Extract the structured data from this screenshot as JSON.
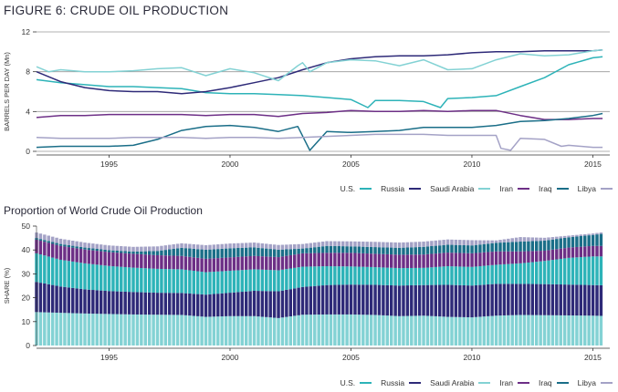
{
  "figure": {
    "title": "FIGURE 6: CRUDE OIL PRODUCTION",
    "subtitle": "Proportion of World Crude Oil Production"
  },
  "legend": [
    {
      "name": "U.S.",
      "color": "#2db3b8"
    },
    {
      "name": "Russia",
      "color": "#2e2a78"
    },
    {
      "name": "Saudi Arabia",
      "color": "#83d2d4"
    },
    {
      "name": "Iran",
      "color": "#6d2f86"
    },
    {
      "name": "Iraq",
      "color": "#1a6e88"
    },
    {
      "name": "Libya",
      "color": "#a4a2c6"
    }
  ],
  "chart_data": [
    {
      "type": "line",
      "title": "FIGURE 6: CRUDE OIL PRODUCTION",
      "ylabel": "BARRELS PER DAY (Mn)",
      "xlabel": "",
      "ylim": [
        0,
        12
      ],
      "yticks": [
        0,
        4,
        8,
        12
      ],
      "xlim": [
        1992,
        2015.7
      ],
      "xticks": [
        1995,
        2000,
        2005,
        2010,
        2015
      ],
      "grid": true,
      "legend_position": "bottom-right",
      "series": [
        {
          "name": "U.S.",
          "color": "#2db3b8",
          "points": [
            [
              1992,
              7.2
            ],
            [
              1993,
              6.9
            ],
            [
              1994,
              6.7
            ],
            [
              1995,
              6.5
            ],
            [
              1996,
              6.5
            ],
            [
              1997,
              6.4
            ],
            [
              1998,
              6.3
            ],
            [
              1999,
              5.9
            ],
            [
              2000,
              5.8
            ],
            [
              2001,
              5.8
            ],
            [
              2002,
              5.7
            ],
            [
              2003,
              5.6
            ],
            [
              2004,
              5.4
            ],
            [
              2005,
              5.2
            ],
            [
              2005.7,
              4.4
            ],
            [
              2006,
              5.1
            ],
            [
              2007,
              5.1
            ],
            [
              2008,
              5.0
            ],
            [
              2008.7,
              4.4
            ],
            [
              2009,
              5.3
            ],
            [
              2010,
              5.4
            ],
            [
              2011,
              5.6
            ],
            [
              2012,
              6.5
            ],
            [
              2013,
              7.4
            ],
            [
              2014,
              8.7
            ],
            [
              2015,
              9.4
            ],
            [
              2015.4,
              9.5
            ]
          ]
        },
        {
          "name": "Russia",
          "color": "#2e2a78",
          "points": [
            [
              1992,
              8.0
            ],
            [
              1992.3,
              7.7
            ],
            [
              1993,
              7.0
            ],
            [
              1994,
              6.4
            ],
            [
              1995,
              6.1
            ],
            [
              1996,
              6.0
            ],
            [
              1997,
              6.0
            ],
            [
              1998,
              5.8
            ],
            [
              1999,
              6.0
            ],
            [
              2000,
              6.4
            ],
            [
              2001,
              6.9
            ],
            [
              2002,
              7.4
            ],
            [
              2003,
              8.2
            ],
            [
              2004,
              8.9
            ],
            [
              2005,
              9.3
            ],
            [
              2006,
              9.5
            ],
            [
              2007,
              9.6
            ],
            [
              2008,
              9.6
            ],
            [
              2009,
              9.7
            ],
            [
              2010,
              9.9
            ],
            [
              2011,
              10.0
            ],
            [
              2012,
              10.0
            ],
            [
              2013,
              10.1
            ],
            [
              2014,
              10.1
            ],
            [
              2015,
              10.1
            ],
            [
              2015.4,
              10.2
            ]
          ]
        },
        {
          "name": "Saudi Arabia",
          "color": "#83d2d4",
          "points": [
            [
              1992,
              8.5
            ],
            [
              1992.5,
              8.0
            ],
            [
              1993,
              8.2
            ],
            [
              1994,
              8.0
            ],
            [
              1995,
              8.0
            ],
            [
              1996,
              8.1
            ],
            [
              1997,
              8.3
            ],
            [
              1998,
              8.4
            ],
            [
              1999,
              7.6
            ],
            [
              2000,
              8.3
            ],
            [
              2001,
              7.9
            ],
            [
              2002,
              7.1
            ],
            [
              2002.8,
              8.6
            ],
            [
              2003,
              8.9
            ],
            [
              2003.3,
              8.0
            ],
            [
              2004,
              8.9
            ],
            [
              2005,
              9.2
            ],
            [
              2006,
              9.1
            ],
            [
              2007,
              8.6
            ],
            [
              2008,
              9.2
            ],
            [
              2009,
              8.2
            ],
            [
              2010,
              8.3
            ],
            [
              2011,
              9.2
            ],
            [
              2012,
              9.8
            ],
            [
              2013,
              9.6
            ],
            [
              2014,
              9.7
            ],
            [
              2015,
              10.1
            ],
            [
              2015.4,
              10.2
            ]
          ]
        },
        {
          "name": "Iran",
          "color": "#6d2f86",
          "points": [
            [
              1992,
              3.4
            ],
            [
              1993,
              3.6
            ],
            [
              1994,
              3.6
            ],
            [
              1995,
              3.7
            ],
            [
              1996,
              3.7
            ],
            [
              1997,
              3.7
            ],
            [
              1998,
              3.7
            ],
            [
              1999,
              3.6
            ],
            [
              2000,
              3.7
            ],
            [
              2001,
              3.7
            ],
            [
              2002,
              3.5
            ],
            [
              2003,
              3.8
            ],
            [
              2004,
              3.9
            ],
            [
              2005,
              4.1
            ],
            [
              2006,
              4.0
            ],
            [
              2007,
              4.0
            ],
            [
              2008,
              4.1
            ],
            [
              2009,
              4.0
            ],
            [
              2010,
              4.1
            ],
            [
              2011,
              4.1
            ],
            [
              2012,
              3.6
            ],
            [
              2013,
              3.2
            ],
            [
              2014,
              3.2
            ],
            [
              2015,
              3.3
            ],
            [
              2015.4,
              3.3
            ]
          ]
        },
        {
          "name": "Iraq",
          "color": "#1a6e88",
          "points": [
            [
              1992,
              0.4
            ],
            [
              1993,
              0.5
            ],
            [
              1994,
              0.5
            ],
            [
              1995,
              0.5
            ],
            [
              1996,
              0.6
            ],
            [
              1997,
              1.2
            ],
            [
              1998,
              2.1
            ],
            [
              1999,
              2.5
            ],
            [
              2000,
              2.6
            ],
            [
              2001,
              2.4
            ],
            [
              2002,
              2.0
            ],
            [
              2002.8,
              2.5
            ],
            [
              2003.3,
              0.1
            ],
            [
              2004,
              2.0
            ],
            [
              2005,
              1.9
            ],
            [
              2006,
              2.0
            ],
            [
              2007,
              2.1
            ],
            [
              2008,
              2.4
            ],
            [
              2009,
              2.4
            ],
            [
              2010,
              2.4
            ],
            [
              2011,
              2.6
            ],
            [
              2012,
              3.0
            ],
            [
              2013,
              3.1
            ],
            [
              2014,
              3.3
            ],
            [
              2015,
              3.6
            ],
            [
              2015.4,
              3.8
            ]
          ]
        },
        {
          "name": "Libya",
          "color": "#a4a2c6",
          "points": [
            [
              1992,
              1.4
            ],
            [
              1993,
              1.3
            ],
            [
              1994,
              1.3
            ],
            [
              1995,
              1.3
            ],
            [
              1996,
              1.4
            ],
            [
              1997,
              1.4
            ],
            [
              1998,
              1.4
            ],
            [
              1999,
              1.3
            ],
            [
              2000,
              1.4
            ],
            [
              2001,
              1.4
            ],
            [
              2002,
              1.3
            ],
            [
              2003,
              1.4
            ],
            [
              2004,
              1.5
            ],
            [
              2005,
              1.6
            ],
            [
              2006,
              1.7
            ],
            [
              2007,
              1.7
            ],
            [
              2008,
              1.7
            ],
            [
              2009,
              1.6
            ],
            [
              2010,
              1.6
            ],
            [
              2011,
              1.6
            ],
            [
              2011.2,
              0.3
            ],
            [
              2011.6,
              0.1
            ],
            [
              2012,
              1.3
            ],
            [
              2013,
              1.2
            ],
            [
              2013.7,
              0.5
            ],
            [
              2014,
              0.6
            ],
            [
              2015,
              0.4
            ],
            [
              2015.4,
              0.4
            ]
          ]
        }
      ]
    },
    {
      "type": "bar",
      "stacked": true,
      "title": "Proportion of World Crude Oil Production",
      "ylabel": "SHARE (%)",
      "xlabel": "",
      "ylim": [
        0,
        50
      ],
      "yticks": [
        0,
        10,
        20,
        30,
        40,
        50
      ],
      "xlim": [
        1992,
        2015.7
      ],
      "xticks": [
        1995,
        2000,
        2005,
        2010,
        2015
      ],
      "grid": false,
      "legend_position": "bottom-right",
      "stack_order": [
        "Saudi Arabia",
        "Russia",
        "U.S.",
        "Iran",
        "Iraq",
        "Libya"
      ],
      "x": [
        1992,
        1993,
        1994,
        1995,
        1996,
        1997,
        1998,
        1999,
        2000,
        2001,
        2002,
        2003,
        2004,
        2005,
        2006,
        2007,
        2008,
        2009,
        2010,
        2011,
        2012,
        2013,
        2014,
        2015,
        2015.4
      ],
      "series": [
        {
          "name": "Saudi Arabia",
          "color": "#83d2d4",
          "values": [
            14.0,
            13.7,
            13.4,
            13.2,
            13.0,
            12.9,
            12.8,
            12.0,
            12.3,
            12.3,
            11.5,
            12.9,
            13.0,
            13.0,
            12.8,
            12.3,
            12.5,
            12.0,
            11.8,
            12.5,
            12.8,
            12.7,
            12.6,
            12.5,
            12.4
          ]
        },
        {
          "name": "Russia",
          "color": "#2e2a78",
          "values": [
            12.6,
            11.0,
            10.1,
            9.6,
            9.4,
            9.2,
            9.2,
            9.3,
            9.8,
            10.6,
            11.2,
            11.6,
            12.3,
            12.5,
            12.6,
            12.8,
            12.8,
            13.4,
            13.3,
            13.3,
            13.0,
            13.0,
            12.9,
            12.8,
            12.8
          ]
        },
        {
          "name": "U.S.",
          "color": "#2db3b8",
          "values": [
            12.0,
            11.2,
            10.9,
            10.5,
            10.2,
            10.0,
            9.9,
            9.4,
            9.2,
            9.0,
            8.8,
            8.5,
            7.9,
            7.6,
            7.4,
            7.3,
            7.2,
            7.8,
            7.8,
            8.0,
            8.6,
            9.7,
            11.2,
            12.0,
            12.1
          ]
        },
        {
          "name": "Iran",
          "color": "#6d2f86",
          "values": [
            5.7,
            5.8,
            5.8,
            5.8,
            5.8,
            5.7,
            5.6,
            5.6,
            5.6,
            5.6,
            5.5,
            5.6,
            5.6,
            5.7,
            5.6,
            5.6,
            5.6,
            5.7,
            5.7,
            5.6,
            5.0,
            4.3,
            4.3,
            4.4,
            4.4
          ]
        },
        {
          "name": "Iraq",
          "color": "#1a6e88",
          "values": [
            0.7,
            0.8,
            0.8,
            0.8,
            0.9,
            1.8,
            3.4,
            3.8,
            3.8,
            3.6,
            3.1,
            2.0,
            2.9,
            2.7,
            2.8,
            2.9,
            3.2,
            3.3,
            3.3,
            3.6,
            4.1,
            4.2,
            4.3,
            4.6,
            5.1
          ]
        },
        {
          "name": "Libya",
          "color": "#a4a2c6",
          "values": [
            2.3,
            2.2,
            2.1,
            2.0,
            2.0,
            1.9,
            1.9,
            1.9,
            2.0,
            2.0,
            2.0,
            1.9,
            2.0,
            2.1,
            2.2,
            2.2,
            2.2,
            2.2,
            2.2,
            1.0,
            1.9,
            1.2,
            0.7,
            0.6,
            0.6
          ]
        }
      ]
    }
  ]
}
